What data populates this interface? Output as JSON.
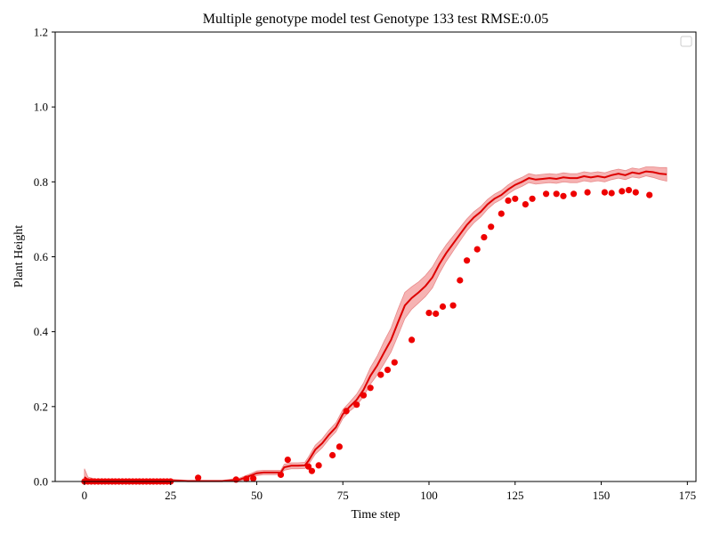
{
  "chart_data": {
    "type": "line",
    "title": "Multiple genotype model test Genotype 133 test RMSE:0.05",
    "xlabel": "Time step",
    "ylabel": "Plant Height",
    "xlim": [
      -8.5,
      177.5
    ],
    "ylim": [
      0.0,
      1.2
    ],
    "xticks": [
      0,
      25,
      50,
      75,
      100,
      125,
      150,
      175
    ],
    "yticks": [
      0.0,
      0.2,
      0.4,
      0.6,
      0.8,
      1.0,
      1.2
    ],
    "grid": false,
    "legend": "top-right (empty)",
    "colors": {
      "prediction": "#dd0000",
      "band": "#f4a6a6",
      "observed": "#ee0000"
    },
    "series": [
      {
        "type": "line",
        "x": [
          0,
          1,
          3,
          5,
          10,
          15,
          20,
          25,
          30,
          35,
          40,
          45,
          48,
          50,
          52,
          55,
          57,
          58,
          60,
          62,
          64,
          65,
          67,
          69,
          71,
          73,
          75,
          77,
          79,
          81,
          83,
          85,
          87,
          89,
          91,
          93,
          95,
          97,
          99,
          101,
          103,
          105,
          107,
          109,
          111,
          113,
          115,
          117,
          119,
          121,
          123,
          125,
          127,
          129,
          131,
          133,
          135,
          137,
          139,
          141,
          143,
          145,
          147,
          149,
          151,
          153,
          155,
          157,
          159,
          161,
          163,
          165,
          167,
          169
        ],
        "y": [
          0.012,
          0.004,
          0.003,
          0.003,
          0.003,
          0.003,
          0.003,
          0.003,
          0.001,
          0.001,
          0.001,
          0.005,
          0.015,
          0.022,
          0.024,
          0.024,
          0.024,
          0.038,
          0.042,
          0.042,
          0.043,
          0.055,
          0.085,
          0.102,
          0.125,
          0.145,
          0.18,
          0.2,
          0.218,
          0.245,
          0.282,
          0.31,
          0.345,
          0.378,
          0.425,
          0.47,
          0.49,
          0.505,
          0.522,
          0.545,
          0.58,
          0.61,
          0.635,
          0.66,
          0.685,
          0.705,
          0.72,
          0.74,
          0.755,
          0.765,
          0.78,
          0.792,
          0.8,
          0.81,
          0.806,
          0.808,
          0.81,
          0.808,
          0.812,
          0.81,
          0.81,
          0.815,
          0.812,
          0.815,
          0.812,
          0.818,
          0.822,
          0.818,
          0.825,
          0.822,
          0.828,
          0.826,
          0.822,
          0.82
        ],
        "band_halfwidth": [
          0.022,
          0.008,
          0.004,
          0.003,
          0.003,
          0.003,
          0.003,
          0.003,
          0.002,
          0.002,
          0.002,
          0.004,
          0.005,
          0.006,
          0.006,
          0.006,
          0.006,
          0.008,
          0.008,
          0.008,
          0.008,
          0.01,
          0.012,
          0.012,
          0.012,
          0.012,
          0.012,
          0.012,
          0.015,
          0.018,
          0.022,
          0.025,
          0.03,
          0.032,
          0.035,
          0.035,
          0.03,
          0.028,
          0.028,
          0.028,
          0.025,
          0.022,
          0.02,
          0.018,
          0.016,
          0.015,
          0.014,
          0.013,
          0.012,
          0.012,
          0.012,
          0.012,
          0.012,
          0.012,
          0.012,
          0.012,
          0.012,
          0.012,
          0.012,
          0.012,
          0.012,
          0.012,
          0.012,
          0.012,
          0.012,
          0.012,
          0.012,
          0.012,
          0.012,
          0.012,
          0.012,
          0.014,
          0.016,
          0.018
        ]
      },
      {
        "type": "scatter",
        "x": [
          0,
          1,
          2,
          3,
          4,
          5,
          6,
          7,
          8,
          9,
          10,
          11,
          12,
          13,
          14,
          15,
          16,
          17,
          18,
          19,
          20,
          21,
          22,
          23,
          24,
          25,
          33,
          44,
          47,
          49,
          57,
          59,
          65,
          66,
          68,
          72,
          74,
          76,
          79,
          81,
          83,
          86,
          88,
          90,
          95,
          100,
          102,
          104,
          107,
          109,
          111,
          114,
          116,
          118,
          121,
          123,
          125,
          128,
          130,
          134,
          137,
          139,
          142,
          146,
          151,
          153,
          156,
          158,
          160,
          164
        ],
        "y": [
          0.0,
          0.0,
          0.0,
          0.0,
          0.0,
          0.0,
          0.0,
          0.0,
          0.0,
          0.0,
          0.0,
          0.0,
          0.0,
          0.0,
          0.0,
          0.0,
          0.0,
          0.0,
          0.0,
          0.0,
          0.0,
          0.0,
          0.0,
          0.0,
          0.0,
          0.0,
          0.01,
          0.005,
          0.007,
          0.008,
          0.018,
          0.058,
          0.04,
          0.028,
          0.043,
          0.07,
          0.093,
          0.188,
          0.205,
          0.23,
          0.25,
          0.285,
          0.298,
          0.318,
          0.378,
          0.45,
          0.448,
          0.467,
          0.47,
          0.537,
          0.59,
          0.62,
          0.652,
          0.68,
          0.715,
          0.75,
          0.755,
          0.74,
          0.755,
          0.768,
          0.768,
          0.762,
          0.768,
          0.772,
          0.772,
          0.77,
          0.775,
          0.778,
          0.772,
          0.765
        ]
      }
    ]
  }
}
